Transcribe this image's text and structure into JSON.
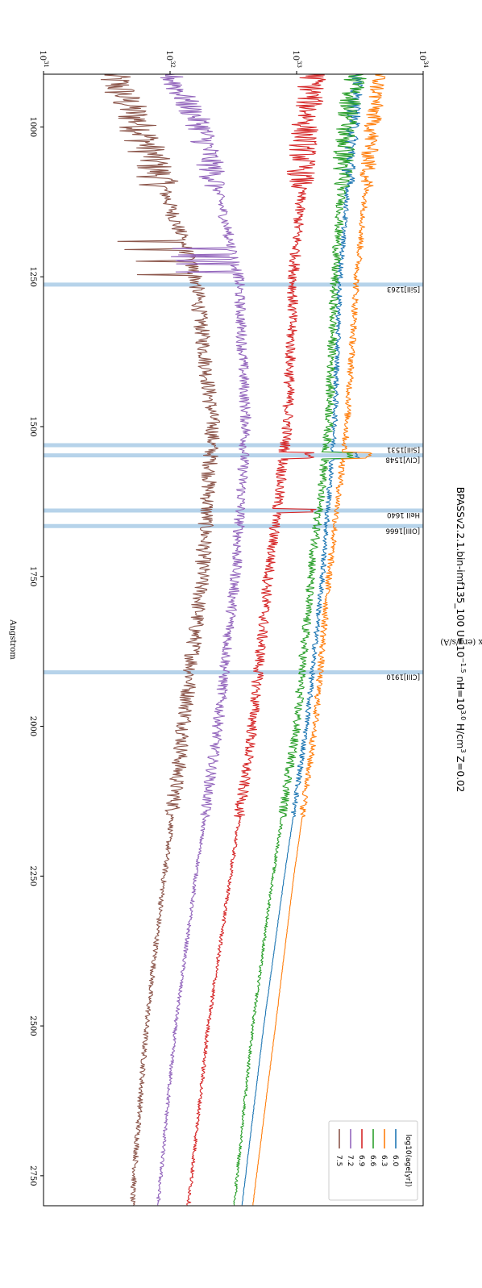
{
  "chart_data": {
    "type": "line",
    "title": "BPASSv2.2.1.bin-imf135_100 U=10",
    "title_parts": {
      "prefix": "BPASSv2.2.1.bin-imf135_100 U=10",
      "u_exp": "−1.5",
      "mid": " nH=10",
      "nh_exp": "3.0",
      "suffix": " H/cm",
      "cm_exp": "3",
      "tail": " Z=0.02"
    },
    "xlabel": "Angstrom",
    "ylabel": "Flux (erg/s/A)",
    "xlim": [
      912,
      2800
    ],
    "ylim": [
      1e+31,
      1e+34
    ],
    "yscale": "log",
    "x_ticks": [
      "1000",
      "1250",
      "1500",
      "1750",
      "2000",
      "2250",
      "2500",
      "2750"
    ],
    "x_tick_values": [
      1000,
      1250,
      1500,
      1750,
      2000,
      2250,
      2500,
      2750
    ],
    "y_ticks": [
      {
        "base": "10",
        "exp": "31",
        "value": 1e+31
      },
      {
        "base": "10",
        "exp": "32",
        "value": 1e+32
      },
      {
        "base": "10",
        "exp": "33",
        "value": 1e+33
      },
      {
        "base": "10",
        "exp": "34",
        "value": 1e+34
      }
    ],
    "legend": {
      "title": "log10(age[yr])",
      "placement": "top-right"
    },
    "emission_lines": [
      {
        "label": "[SiII]1263",
        "x": 1263
      },
      {
        "label": "[SiII]1531",
        "x": 1531
      },
      {
        "label": "[CIV]1548",
        "x": 1548
      },
      {
        "label": "HeII 1640",
        "x": 1640
      },
      {
        "label": "[OIII]1666",
        "x": 1666
      },
      {
        "label": "[CIII]1910",
        "x": 1910
      }
    ],
    "series": [
      {
        "name": "6.0",
        "color": "#1f77b4",
        "anchors": [
          [
            912,
            3e+33
          ],
          [
            1000,
            2.8e+33
          ],
          [
            1250,
            2.2e+33
          ],
          [
            1500,
            2e+33
          ],
          [
            1750,
            1.6e+33
          ],
          [
            2000,
            1.2e+33
          ],
          [
            2250,
            8e+32
          ],
          [
            2500,
            5.5e+32
          ],
          [
            2800,
            3.7e+32
          ]
        ],
        "noise": 0.05
      },
      {
        "name": "6.3",
        "color": "#ff7f0e",
        "anchors": [
          [
            912,
            4.5e+33
          ],
          [
            1000,
            4e+33
          ],
          [
            1250,
            3e+33
          ],
          [
            1500,
            2.5e+33
          ],
          [
            1750,
            1.8e+33
          ],
          [
            2000,
            1.4e+33
          ],
          [
            2250,
            9.5e+32
          ],
          [
            2500,
            6.8e+32
          ],
          [
            2800,
            4.5e+32
          ]
        ],
        "noise": 0.06
      },
      {
        "name": "6.6",
        "color": "#2ca02c",
        "anchors": [
          [
            912,
            3e+33
          ],
          [
            1000,
            2.5e+33
          ],
          [
            1250,
            2e+33
          ],
          [
            1500,
            1.8e+33
          ],
          [
            1750,
            1.3e+33
          ],
          [
            2000,
            1e+33
          ],
          [
            2250,
            6.5e+32
          ],
          [
            2500,
            4.5e+32
          ],
          [
            2800,
            3.2e+32
          ]
        ],
        "noise": 0.08
      },
      {
        "name": "6.9",
        "color": "#d62728",
        "anchors": [
          [
            912,
            1.4e+33
          ],
          [
            1000,
            1.2e+33
          ],
          [
            1250,
            9.5e+32
          ],
          [
            1500,
            8.5e+32
          ],
          [
            1750,
            6e+32
          ],
          [
            2000,
            4.5e+32
          ],
          [
            2250,
            3e+32
          ],
          [
            2500,
            2e+32
          ],
          [
            2800,
            1.4e+32
          ]
        ],
        "noise": 0.1
      },
      {
        "name": "7.2",
        "color": "#9467bd",
        "anchors": [
          [
            912,
            1e+32
          ],
          [
            1000,
            1.8e+32
          ],
          [
            1250,
            3.5e+32
          ],
          [
            1500,
            4e+32
          ],
          [
            1750,
            3.3e+32
          ],
          [
            2000,
            2.4e+32
          ],
          [
            2250,
            1.6e+32
          ],
          [
            2500,
            1.1e+32
          ],
          [
            2800,
            8e+31
          ]
        ],
        "noise": 0.1
      },
      {
        "name": "7.5",
        "color": "#8c564b",
        "anchors": [
          [
            912,
            3.5e+31
          ],
          [
            1000,
            6e+31
          ],
          [
            1250,
            1.6e+32
          ],
          [
            1500,
            2.2e+32
          ],
          [
            1750,
            1.8e+32
          ],
          [
            2000,
            1.3e+32
          ],
          [
            2250,
            9e+31
          ],
          [
            2500,
            6.5e+31
          ],
          [
            2800,
            5e+31
          ]
        ],
        "noise": 0.14
      }
    ]
  }
}
